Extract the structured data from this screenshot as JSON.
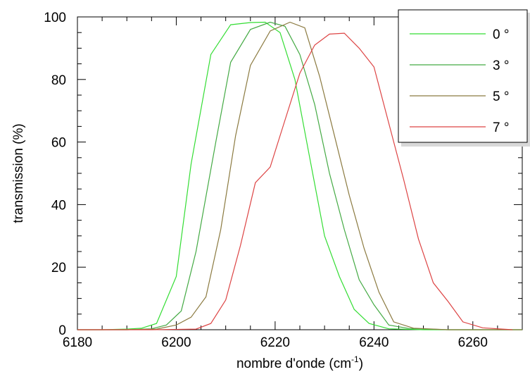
{
  "chart_data": {
    "type": "line",
    "xlabel": "nombre d'onde (cm",
    "xlabel_sup": "-1",
    "xlabel_tail": ")",
    "ylabel": "transmission (%)",
    "xlim": [
      6180,
      6270
    ],
    "ylim": [
      0,
      100
    ],
    "xticks": [
      6180,
      6200,
      6220,
      6240,
      6260
    ],
    "yticks": [
      0,
      20,
      40,
      60,
      80,
      100
    ],
    "grid": false,
    "legend_position": "top-right",
    "series": [
      {
        "name": "0 °",
        "color": "#33dd33",
        "x": [
          6180,
          6185,
          6190,
          6193,
          6196,
          6200,
          6203,
          6207,
          6211,
          6215,
          6218,
          6221,
          6224,
          6227,
          6230,
          6233,
          6236,
          6239,
          6243,
          6250,
          6270
        ],
        "y": [
          0,
          0,
          0.2,
          0.5,
          2,
          17,
          53,
          88,
          97.5,
          98.2,
          98.3,
          95,
          80,
          55,
          30,
          17,
          6.5,
          2,
          0.3,
          0,
          0
        ]
      },
      {
        "name": "3 °",
        "color": "#44aa44",
        "x": [
          6180,
          6190,
          6195,
          6198,
          6201,
          6204,
          6208,
          6211,
          6215,
          6219,
          6222,
          6225,
          6228,
          6231,
          6234,
          6237,
          6240,
          6243,
          6247,
          6255,
          6270
        ],
        "y": [
          0,
          0,
          0.3,
          1.5,
          6,
          25,
          60,
          85.5,
          96,
          98.3,
          97,
          88,
          72,
          50,
          32,
          16,
          8,
          1.5,
          0.4,
          0,
          0
        ]
      },
      {
        "name": "5 °",
        "color": "#8b7a40",
        "x": [
          6180,
          6190,
          6196,
          6200,
          6203,
          6206,
          6209,
          6212,
          6215,
          6219,
          6223,
          6226,
          6229,
          6232,
          6235,
          6238,
          6241,
          6244,
          6248,
          6255,
          6270
        ],
        "y": [
          0,
          0,
          0.2,
          1.5,
          4,
          10.5,
          32,
          62,
          84.5,
          95.5,
          98.3,
          96.5,
          81,
          62,
          43,
          26,
          12,
          2.5,
          0.5,
          0,
          0
        ]
      },
      {
        "name": "7 °",
        "color": "#dd4444",
        "x": [
          6180,
          6195,
          6204,
          6207,
          6210,
          6213,
          6216,
          6219,
          6222,
          6225,
          6228,
          6231,
          6234,
          6237,
          6240,
          6243,
          6246,
          6249,
          6252,
          6255,
          6258,
          6262,
          6268
        ],
        "y": [
          0,
          0,
          0.2,
          2,
          9.5,
          27,
          47,
          52,
          67,
          82,
          91,
          94.5,
          94.8,
          90,
          84,
          66,
          48,
          29,
          15,
          9,
          2.5,
          0.6,
          0
        ]
      }
    ]
  }
}
